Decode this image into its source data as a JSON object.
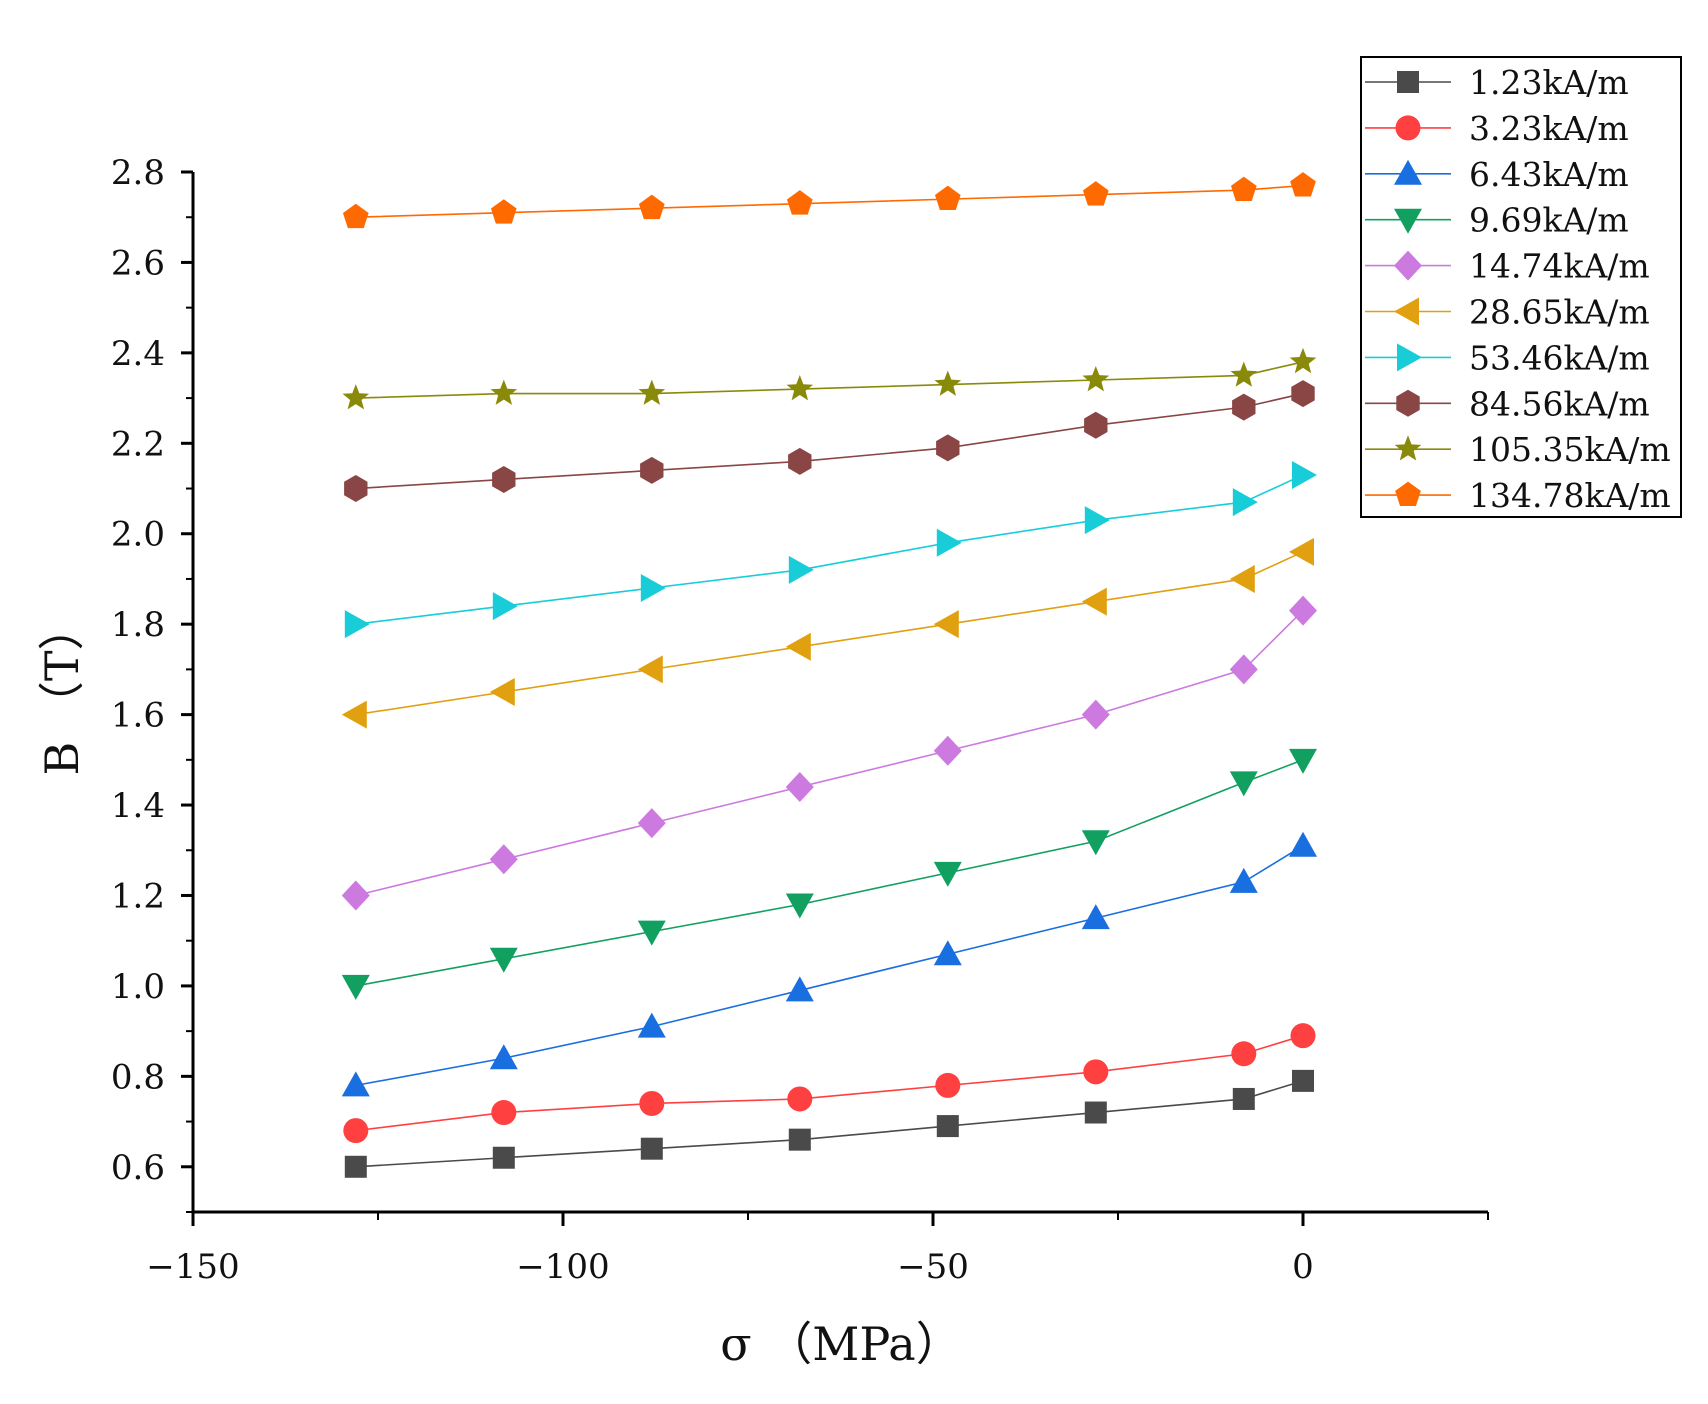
{
  "chart_data": {
    "type": "line",
    "title": "",
    "xlabel": "σ （MPa）",
    "ylabel": "B （T）",
    "xlim": [
      -150,
      25
    ],
    "ylim": [
      0.5,
      2.8
    ],
    "x_ticks": [
      -150,
      -100,
      -50,
      0
    ],
    "x_tick_labels": [
      "−150",
      "−100",
      "−50",
      "0"
    ],
    "y_ticks": [
      0.6,
      0.8,
      1.0,
      1.2,
      1.4,
      1.6,
      1.8,
      2.0,
      2.2,
      2.4,
      2.6,
      2.8
    ],
    "y_tick_labels": [
      "0.6",
      "0.8",
      "1.0",
      "1.2",
      "1.4",
      "1.6",
      "1.8",
      "2.0",
      "2.2",
      "2.4",
      "2.6",
      "2.8"
    ],
    "grid": false,
    "legend_position": "top-right",
    "x": [
      -128,
      -108,
      -88,
      -68,
      -48,
      -28,
      -8,
      0
    ],
    "series": [
      {
        "name": "1.23kA/m",
        "color": "#4a4a4a",
        "marker": "square",
        "values": [
          0.6,
          0.62,
          0.64,
          0.66,
          0.69,
          0.72,
          0.75,
          0.79
        ]
      },
      {
        "name": "3.23kA/m",
        "color": "#ff4040",
        "marker": "circle",
        "values": [
          0.68,
          0.72,
          0.74,
          0.75,
          0.78,
          0.81,
          0.85,
          0.89
        ]
      },
      {
        "name": "6.43kA/m",
        "color": "#1a6fe0",
        "marker": "triangle-up",
        "values": [
          0.78,
          0.84,
          0.91,
          0.99,
          1.07,
          1.15,
          1.23,
          1.31
        ]
      },
      {
        "name": "9.69kA/m",
        "color": "#12a060",
        "marker": "triangle-down",
        "values": [
          1.0,
          1.06,
          1.12,
          1.18,
          1.25,
          1.32,
          1.45,
          1.5
        ]
      },
      {
        "name": "14.74kA/m",
        "color": "#cc7ae0",
        "marker": "diamond",
        "values": [
          1.2,
          1.28,
          1.36,
          1.44,
          1.52,
          1.6,
          1.7,
          1.83
        ]
      },
      {
        "name": "28.65kA/m",
        "color": "#e0a010",
        "marker": "triangle-left",
        "values": [
          1.6,
          1.65,
          1.7,
          1.75,
          1.8,
          1.85,
          1.9,
          1.96
        ]
      },
      {
        "name": "53.46kA/m",
        "color": "#18cdd8",
        "marker": "triangle-right",
        "values": [
          1.8,
          1.84,
          1.88,
          1.92,
          1.98,
          2.03,
          2.07,
          2.13
        ]
      },
      {
        "name": "84.56kA/m",
        "color": "#8a4545",
        "marker": "hexagon",
        "values": [
          2.1,
          2.12,
          2.14,
          2.16,
          2.19,
          2.24,
          2.28,
          2.31
        ]
      },
      {
        "name": "105.35kA/m",
        "color": "#8a8a0a",
        "marker": "star",
        "values": [
          2.3,
          2.31,
          2.31,
          2.32,
          2.33,
          2.34,
          2.35,
          2.38
        ]
      },
      {
        "name": "134.78kA/m",
        "color": "#ff6a00",
        "marker": "pentagon",
        "values": [
          2.7,
          2.71,
          2.72,
          2.73,
          2.74,
          2.75,
          2.76,
          2.77
        ]
      }
    ]
  }
}
